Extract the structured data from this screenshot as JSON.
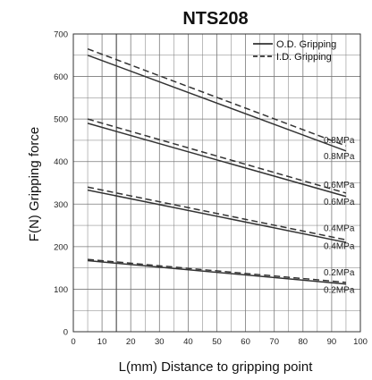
{
  "chart_data": {
    "type": "line",
    "title": "NTS208",
    "xlabel": "L(mm)  Distance to gripping point",
    "ylabel": "F(N) Gripping force",
    "xlim": [
      0,
      100
    ],
    "ylim": [
      0,
      700
    ],
    "x_ticks": [
      0,
      10,
      20,
      30,
      40,
      50,
      60,
      70,
      80,
      90,
      100
    ],
    "y_ticks": [
      0,
      100,
      200,
      300,
      400,
      500,
      600,
      700
    ],
    "grid": true,
    "legend_position": "top-right",
    "legend": [
      {
        "label": "O.D. Gripping",
        "style": "solid"
      },
      {
        "label": "I.D. Gripping",
        "style": "dashed"
      }
    ],
    "series": [
      {
        "label": "0.8MPa",
        "gripping": "O.D. Gripping",
        "style": "solid",
        "x": [
          5,
          95
        ],
        "y": [
          650,
          425
        ]
      },
      {
        "label": "0.8MPa",
        "gripping": "I.D. Gripping",
        "style": "dashed",
        "x": [
          5,
          95
        ],
        "y": [
          665,
          437
        ]
      },
      {
        "label": "0.6MPa",
        "gripping": "O.D. Gripping",
        "style": "solid",
        "x": [
          5,
          95
        ],
        "y": [
          490,
          318
        ]
      },
      {
        "label": "0.6MPa",
        "gripping": "I.D. Gripping",
        "style": "dashed",
        "x": [
          5,
          95
        ],
        "y": [
          500,
          326
        ]
      },
      {
        "label": "0.4MPa",
        "gripping": "O.D. Gripping",
        "style": "solid",
        "x": [
          5,
          95
        ],
        "y": [
          333,
          210
        ]
      },
      {
        "label": "0.4MPa",
        "gripping": "I.D. Gripping",
        "style": "dashed",
        "x": [
          5,
          95
        ],
        "y": [
          340,
          216
        ]
      },
      {
        "label": "0.2MPa",
        "gripping": "O.D. Gripping",
        "style": "solid",
        "x": [
          5,
          95
        ],
        "y": [
          167,
          112
        ]
      },
      {
        "label": "0.2MPa",
        "gripping": "I.D. Gripping",
        "style": "dashed",
        "x": [
          5,
          95
        ],
        "y": [
          170,
          116
        ]
      }
    ],
    "pressure_labels": [
      {
        "text": "0.8MPa",
        "x": 95,
        "y": 451
      },
      {
        "text": "0.8MPa",
        "x": 95,
        "y": 413
      },
      {
        "text": "0.6MPa",
        "x": 95,
        "y": 346
      },
      {
        "text": "0.6MPa",
        "x": 95,
        "y": 306
      },
      {
        "text": "0.4MPa",
        "x": 95,
        "y": 244
      },
      {
        "text": "0.4MPa",
        "x": 95,
        "y": 202
      },
      {
        "text": "0.2MPa",
        "x": 95,
        "y": 140
      },
      {
        "text": "0.2MPa",
        "x": 95,
        "y": 99
      }
    ],
    "colors": {
      "line": "#333333",
      "grid": "#7a7a7a",
      "text": "#111111"
    }
  }
}
